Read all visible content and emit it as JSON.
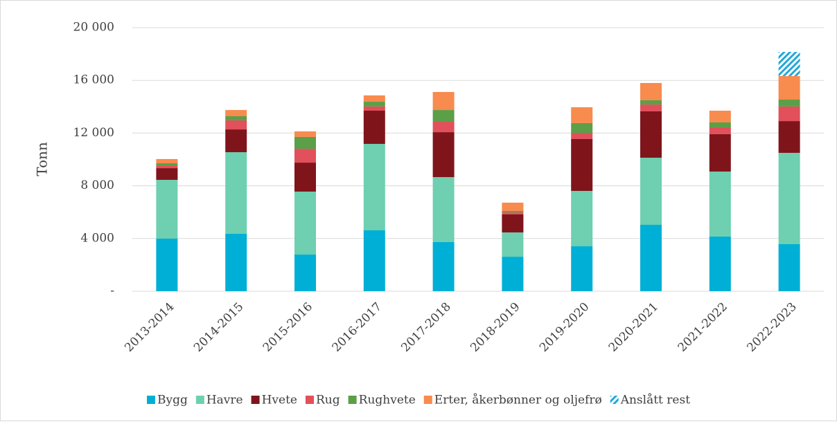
{
  "chart_data": {
    "type": "stacked_bar",
    "y_label": "Tonn",
    "categories": [
      "2013-2014",
      "2014-2015",
      "2015-2016",
      "2016-2017",
      "2017-2018",
      "2018-2019",
      "2019-2020",
      "2020-2021",
      "2021-2022",
      "2022-2023"
    ],
    "series": [
      {
        "name": "Bygg",
        "color": "#00afd6",
        "values": [
          3990,
          4360,
          2780,
          4620,
          3730,
          2620,
          3410,
          5040,
          4150,
          3570
        ]
      },
      {
        "name": "Havre",
        "color": "#6ecfb1",
        "values": [
          4460,
          6190,
          4780,
          6560,
          4930,
          1840,
          4200,
          5090,
          4930,
          6930
        ]
      },
      {
        "name": "Hvete",
        "color": "#7f151b",
        "values": [
          890,
          1730,
          2200,
          2520,
          3410,
          1370,
          3940,
          3520,
          2840,
          2410
        ]
      },
      {
        "name": "Rug",
        "color": "#e1505b",
        "values": [
          210,
          690,
          1050,
          320,
          790,
          150,
          470,
          520,
          520,
          1110
        ]
      },
      {
        "name": "Rughvete",
        "color": "#5b9f48",
        "values": [
          160,
          310,
          900,
          360,
          890,
          110,
          740,
          320,
          370,
          520
        ]
      },
      {
        "name": "Erter, åkerbønner og oljefrø",
        "color": "#f88b4e",
        "values": [
          320,
          470,
          420,
          480,
          1370,
          630,
          1200,
          1310,
          890,
          1790
        ]
      },
      {
        "name": "Anslått rest",
        "color": "#22a6d8",
        "hatched": true,
        "values": [
          null,
          null,
          null,
          null,
          null,
          null,
          null,
          null,
          null,
          1830
        ]
      }
    ],
    "ylim": [
      0,
      20000
    ],
    "yticks": [
      {
        "value": 0,
        "label": "-"
      },
      {
        "value": 4000,
        "label": "4 000"
      },
      {
        "value": 8000,
        "label": "8 000"
      },
      {
        "value": 12000,
        "label": "12 000"
      },
      {
        "value": 16000,
        "label": "16 000"
      },
      {
        "value": 20000,
        "label": "20 000"
      }
    ],
    "grid": true,
    "legend": "bottom"
  }
}
